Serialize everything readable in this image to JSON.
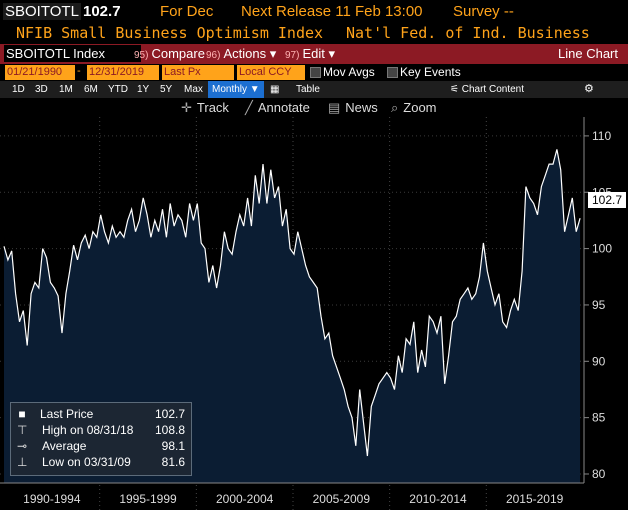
{
  "header": {
    "ticker": "SBOITOTL",
    "last_price": "102.7",
    "period": "For Dec",
    "next_release": "Next Release 11 Feb 13:00",
    "survey": "Survey --",
    "description": "NFIB Small Business Optimism Index",
    "source": "Nat'l Fed. of Ind. Business"
  },
  "toolbar": {
    "security": "SBOITOTL Index",
    "compare_num": "95)",
    "compare_label": "Compare",
    "actions_num": "96)",
    "actions_label": "Actions ▾",
    "edit_num": "97)",
    "edit_label": "Edit ▾",
    "chart_type": "Line Chart"
  },
  "options": {
    "start_date": "01/21/1990",
    "end_date": "12/31/2019",
    "price_field": "Last Px",
    "currency": "Local CCY",
    "mov_avgs_label": "Mov Avgs",
    "key_events_label": "Key Events"
  },
  "periods": {
    "items": [
      "1D",
      "3D",
      "1M",
      "6M",
      "YTD",
      "1Y",
      "5Y",
      "Max"
    ],
    "frequency": "Monthly ▼",
    "table_label": "Table",
    "chart_content_label": "Chart Content",
    "chart_content_icon": "chart-icon",
    "settings_icon": "gear-icon"
  },
  "tools": {
    "track_label": "Track",
    "annotate_label": "Annotate",
    "news_label": "News",
    "zoom_label": "Zoom"
  },
  "legend": {
    "last_label": "Last Price",
    "last_value": "102.7",
    "high_label": "High on 08/31/18",
    "high_value": "108.8",
    "avg_label": "Average",
    "avg_value": "98.1",
    "low_label": "Low on 03/31/09",
    "low_value": "81.6"
  },
  "price_tag": "102.7",
  "colors": {
    "accent_orange": "#ffa31a",
    "bar_red": "#8c1a24",
    "selected_blue": "#1c6fd1",
    "area_fill": "#0b1d33",
    "line": "#ffffff"
  },
  "chart_data": {
    "type": "area",
    "title": "NFIB Small Business Optimism Index",
    "xlabel": "",
    "ylabel": "",
    "ylim": [
      79.2,
      111.5
    ],
    "yticks": [
      80,
      85,
      90,
      95,
      100,
      105,
      110
    ],
    "ytick_labels": [
      "80",
      "85",
      "90",
      "95",
      "100",
      "105",
      "110"
    ],
    "grid": "y-dashed",
    "x_periods": [
      "1990-1994",
      "1995-1999",
      "2000-2004",
      "2005-2009",
      "2010-2014",
      "2015-2019"
    ],
    "x_range": [
      1990.05,
      2019.95
    ],
    "series": [
      {
        "x": [
          1990.05,
          1990.25,
          1990.45,
          1990.65,
          1990.85,
          1991.05,
          1991.25,
          1991.45,
          1991.65,
          1991.85,
          1992.05,
          1992.25,
          1992.45,
          1992.65,
          1992.85,
          1993.05,
          1993.25,
          1993.45,
          1993.65,
          1993.85,
          1994.05,
          1994.25,
          1994.45,
          1994.65,
          1994.85,
          1995.05,
          1995.25,
          1995.45,
          1995.65,
          1995.85,
          1996.05,
          1996.25,
          1996.45,
          1996.65,
          1996.85,
          1997.05,
          1997.25,
          1997.45,
          1997.65,
          1997.85,
          1998.05,
          1998.25,
          1998.45,
          1998.65,
          1998.85,
          1999.05,
          1999.25,
          1999.45,
          1999.65,
          1999.85,
          2000.05,
          2000.25,
          2000.45,
          2000.65,
          2000.85,
          2001.05,
          2001.25,
          2001.45,
          2001.65,
          2001.85,
          2002.05,
          2002.25,
          2002.45,
          2002.65,
          2002.85,
          2003.05,
          2003.25,
          2003.45,
          2003.65,
          2003.85,
          2004.05,
          2004.25,
          2004.45,
          2004.65,
          2004.85,
          2005.05,
          2005.25,
          2005.45,
          2005.65,
          2005.85,
          2006.05,
          2006.25,
          2006.45,
          2006.65,
          2006.85,
          2007.05,
          2007.25,
          2007.45,
          2007.65,
          2007.85,
          2008.05,
          2008.25,
          2008.45,
          2008.65,
          2008.85,
          2009.05,
          2009.25,
          2009.45,
          2009.65,
          2009.85,
          2010.05,
          2010.25,
          2010.45,
          2010.65,
          2010.85,
          2011.05,
          2011.25,
          2011.45,
          2011.65,
          2011.85,
          2012.05,
          2012.25,
          2012.45,
          2012.65,
          2012.85,
          2013.05,
          2013.25,
          2013.45,
          2013.65,
          2013.85,
          2014.05,
          2014.25,
          2014.45,
          2014.65,
          2014.85,
          2015.05,
          2015.25,
          2015.45,
          2015.65,
          2015.85,
          2016.05,
          2016.25,
          2016.45,
          2016.65,
          2016.85,
          2017.05,
          2017.25,
          2017.45,
          2017.65,
          2017.85,
          2018.05,
          2018.25,
          2018.45,
          2018.65,
          2018.85,
          2019.05,
          2019.25,
          2019.45,
          2019.65,
          2019.85
        ],
        "values": [
          100.2,
          99.0,
          99.8,
          96.0,
          93.5,
          94.5,
          91.4,
          96.0,
          97.0,
          96.5,
          100.0,
          99.2,
          97.0,
          96.5,
          95.8,
          92.5,
          96.0,
          98.0,
          100.3,
          99.0,
          100.5,
          101.2,
          100.0,
          101.5,
          101.0,
          103.0,
          101.5,
          100.5,
          102.0,
          101.0,
          101.5,
          101.0,
          102.5,
          103.5,
          101.5,
          102.5,
          104.5,
          103.0,
          101.0,
          102.5,
          101.5,
          103.5,
          101.0,
          104.0,
          102.0,
          103.0,
          102.5,
          101.0,
          104.0,
          102.5,
          104.0,
          100.5,
          100.0,
          97.0,
          98.5,
          96.5,
          98.5,
          101.5,
          100.0,
          99.5,
          101.5,
          103.0,
          102.0,
          104.5,
          102.0,
          106.5,
          104.0,
          107.5,
          104.0,
          107.0,
          104.5,
          105.5,
          102.0,
          103.5,
          100.0,
          99.5,
          101.5,
          100.0,
          98.5,
          97.5,
          97.0,
          96.5,
          94.0,
          92.0,
          92.5,
          90.5,
          89.5,
          88.5,
          87.5,
          86.0,
          85.0,
          82.5,
          87.5,
          84.5,
          81.6,
          86.0,
          87.0,
          88.0,
          88.5,
          89.0,
          88.5,
          87.5,
          90.5,
          89.0,
          92.0,
          91.5,
          93.5,
          89.0,
          91.0,
          89.5,
          94.0,
          93.5,
          92.5,
          94.0,
          88.0,
          90.5,
          93.5,
          94.0,
          95.5,
          96.0,
          96.5,
          95.5,
          96.0,
          97.5,
          100.5,
          98.0,
          96.5,
          95.0,
          96.0,
          93.5,
          93.0,
          94.5,
          95.5,
          94.5,
          98.0,
          105.5,
          104.5,
          104.0,
          103.0,
          105.5,
          106.5,
          107.5,
          107.5,
          108.8,
          107.0,
          101.5,
          103.0,
          104.5,
          101.5,
          102.7
        ]
      }
    ]
  }
}
